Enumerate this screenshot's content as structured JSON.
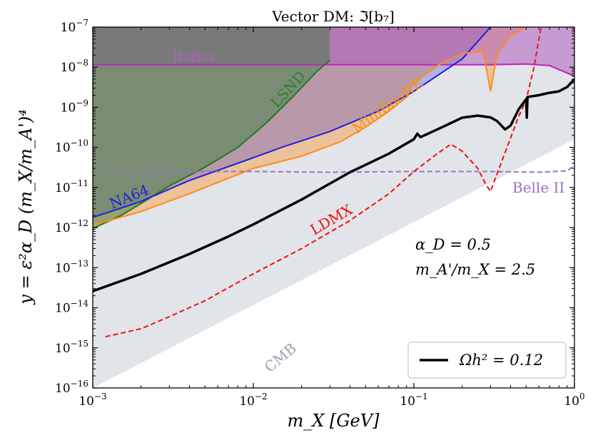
{
  "chart_data": {
    "type": "line",
    "title": "Vector DM: ℑ[b₇]",
    "xlabel": "m_X [GeV]",
    "ylabel": "y = ε²α_D (m_X/m_A')⁴",
    "x_scale": "log",
    "y_scale": "log",
    "xlim": [
      0.001,
      1
    ],
    "ylim": [
      1e-16,
      1e-07
    ],
    "grid": false,
    "x_ticks": [
      0.001,
      0.01,
      0.1,
      1
    ],
    "x_tick_labels": [
      {
        "base": "10",
        "exp": "−3"
      },
      {
        "base": "10",
        "exp": "−2"
      },
      {
        "base": "10",
        "exp": "−1"
      },
      {
        "base": "10",
        "exp": "0"
      }
    ],
    "y_ticks": [
      1e-16,
      1e-15,
      1e-14,
      1e-13,
      1e-12,
      1e-11,
      1e-10,
      1e-09,
      1e-08,
      1e-07
    ],
    "y_tick_labels": [
      {
        "base": "10",
        "exp": "−16"
      },
      {
        "base": "10",
        "exp": "−15"
      },
      {
        "base": "10",
        "exp": "−14"
      },
      {
        "base": "10",
        "exp": "−13"
      },
      {
        "base": "10",
        "exp": "−12"
      },
      {
        "base": "10",
        "exp": "−11"
      },
      {
        "base": "10",
        "exp": "−10"
      },
      {
        "base": "10",
        "exp": "−9"
      },
      {
        "base": "10",
        "exp": "−8"
      },
      {
        "base": "10",
        "exp": "−7"
      }
    ],
    "annotations": [
      "α_D = 0.5",
      "m_A'/m_X = 2.5"
    ],
    "legend": {
      "position": "bottom-right",
      "entries": [
        {
          "label": "Ωh² = 0.12",
          "color": "#000000"
        }
      ]
    },
    "series": [
      {
        "name": "CMB",
        "style": "filled region",
        "color": "#e1e4e8",
        "x": [
          0.001,
          1
        ],
        "y": [
          1e-16,
          1.6e-10
        ]
      },
      {
        "name": "BaBar",
        "style": "filled region",
        "color": "#b05fc0",
        "x": [
          0.001,
          0.3,
          0.5,
          0.7,
          1.0
        ],
        "y": [
          1.15e-08,
          1.15e-08,
          1.2e-08,
          1.1e-08,
          6e-09
        ]
      },
      {
        "name": "LSND",
        "style": "filled region",
        "color": "#2e7d32",
        "x": [
          0.001,
          0.0015,
          0.002,
          0.003,
          0.005,
          0.008,
          0.012,
          0.018,
          0.025,
          0.03
        ],
        "y": [
          9.5e-13,
          2e-12,
          4e-12,
          1.1e-11,
          3.2e-11,
          1e-10,
          4e-10,
          2e-09,
          8e-09,
          1.5e-08
        ]
      },
      {
        "name": "NA64",
        "style": "filled region",
        "color": "#1f1fd6",
        "x": [
          0.001,
          0.002,
          0.004,
          0.008,
          0.015,
          0.03,
          0.06,
          0.1,
          0.2,
          0.3
        ],
        "y": [
          1.8e-12,
          4.5e-12,
          1.5e-11,
          4e-11,
          1e-10,
          2.5e-10,
          8e-10,
          2.5e-09,
          1.6e-08,
          1e-07
        ]
      },
      {
        "name": "MiniBooNE",
        "style": "filled region",
        "color": "#ff8c1a",
        "x": [
          0.001,
          0.002,
          0.004,
          0.007,
          0.01,
          0.02,
          0.035,
          0.05,
          0.07,
          0.09,
          0.1,
          0.14,
          0.2,
          0.27,
          0.3,
          0.33,
          0.4,
          0.5,
          0.55
        ],
        "y": [
          1.15e-12,
          2.5e-12,
          7e-12,
          1.7e-11,
          3e-11,
          6e-11,
          1.4e-10,
          3.2e-10,
          8e-10,
          1.8e-09,
          4e-09,
          1.1e-08,
          2.2e-08,
          2.5e-08,
          2.5e-09,
          2.2e-08,
          6e-08,
          1e-07,
          1e-07
        ]
      },
      {
        "name": "Belle II",
        "style": "dashed",
        "color": "#9b6fcb",
        "x": [
          0.0012,
          0.004,
          0.01,
          0.03,
          0.1,
          0.3,
          0.6,
          0.9,
          1.0
        ],
        "y": [
          2.5e-11,
          2.5e-11,
          2.5e-11,
          2.4e-11,
          2.5e-11,
          2.5e-11,
          2.4e-11,
          2.6e-11,
          3.5e-11
        ]
      },
      {
        "name": "LDMX",
        "style": "dashed",
        "color": "#ee1111",
        "x": [
          0.0012,
          0.002,
          0.003,
          0.005,
          0.01,
          0.02,
          0.04,
          0.07,
          0.1,
          0.14,
          0.17,
          0.2,
          0.25,
          0.28,
          0.3,
          0.32,
          0.38,
          0.45,
          0.5,
          0.56,
          0.6,
          0.62
        ],
        "y": [
          1.9e-15,
          3e-15,
          6e-15,
          1.5e-14,
          7e-14,
          3e-13,
          1.5e-12,
          7e-12,
          2.5e-11,
          7e-11,
          1.2e-10,
          8e-11,
          3e-11,
          1.2e-11,
          8e-12,
          1.6e-11,
          1e-10,
          6e-10,
          1.5e-09,
          1e-08,
          5e-08,
          1e-07
        ]
      },
      {
        "name": "Ωh² = 0.12",
        "style": "solid",
        "color": "#000000",
        "x": [
          0.001,
          0.002,
          0.004,
          0.007,
          0.01,
          0.02,
          0.04,
          0.07,
          0.1,
          0.105,
          0.11,
          0.15,
          0.2,
          0.25,
          0.3,
          0.33,
          0.37,
          0.4,
          0.45,
          0.5,
          0.505,
          0.51,
          0.55,
          0.6,
          0.7,
          0.8,
          0.9,
          1.0
        ],
        "y": [
          2.6e-14,
          7e-14,
          2.2e-13,
          6e-13,
          1.2e-12,
          5e-12,
          2.4e-11,
          7e-11,
          1.6e-10,
          2.2e-10,
          1.8e-10,
          3.2e-10,
          5.5e-10,
          6.2e-10,
          5.6e-10,
          4.5e-10,
          2.8e-10,
          3.5e-10,
          9e-10,
          1.6e-09,
          5.5e-10,
          1.8e-09,
          1.9e-09,
          2e-09,
          2.3e-09,
          2.5e-09,
          3.2e-09,
          5e-09
        ]
      }
    ],
    "series_labels": [
      {
        "text": "BaBar",
        "color": "#b05fc0"
      },
      {
        "text": "LSND",
        "color": "#2e7d32"
      },
      {
        "text": "MiniBooNE",
        "color": "#ff8c1a"
      },
      {
        "text": "NA64",
        "color": "#1f1fd6"
      },
      {
        "text": "Belle II",
        "color": "#9b6fcb"
      },
      {
        "text": "LDMX",
        "color": "#ee1111"
      },
      {
        "text": "CMB",
        "color": "#9aa3ad"
      }
    ]
  }
}
